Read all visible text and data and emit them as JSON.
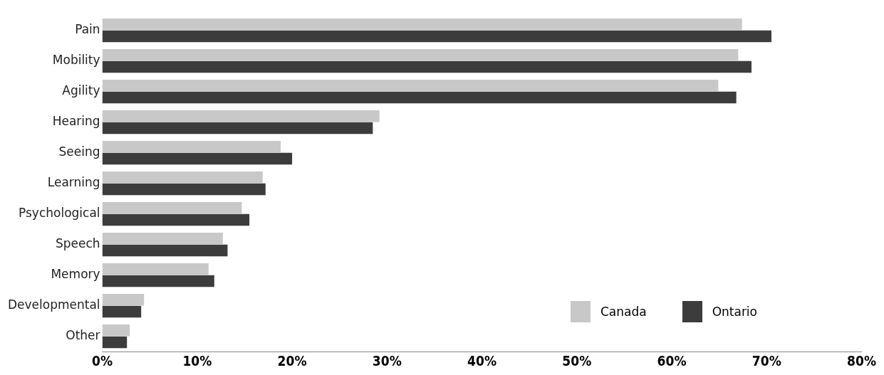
{
  "chart_data": {
    "type": "bar",
    "orientation": "horizontal",
    "categories": [
      "Pain",
      "Mobility",
      "Agility",
      "Hearing",
      "Seeing",
      "Learning",
      "Psychological",
      "Speech",
      "Memory",
      "Developmental",
      "Other"
    ],
    "series": [
      {
        "name": "Canada",
        "color": "#c8c8c8",
        "values": [
          67.4,
          67.0,
          64.9,
          29.2,
          18.8,
          16.9,
          14.7,
          12.7,
          11.2,
          4.4,
          2.9
        ]
      },
      {
        "name": "Ontario",
        "color": "#3c3c3c",
        "values": [
          70.5,
          68.4,
          66.8,
          28.5,
          20.0,
          17.2,
          15.5,
          13.2,
          11.8,
          4.1,
          2.6
        ]
      }
    ],
    "xlim": [
      0,
      80
    ],
    "xticks": [
      {
        "value": 0,
        "label": "0%"
      },
      {
        "value": 10,
        "label": "10%"
      },
      {
        "value": 20,
        "label": "20%"
      },
      {
        "value": 30,
        "label": "30%"
      },
      {
        "value": 40,
        "label": "40%"
      },
      {
        "value": 50,
        "label": "50%"
      },
      {
        "value": 60,
        "label": "60%"
      },
      {
        "value": 70,
        "label": "70%"
      },
      {
        "value": 80,
        "label": "80%"
      }
    ],
    "grid": false,
    "legend": "bottom right"
  }
}
